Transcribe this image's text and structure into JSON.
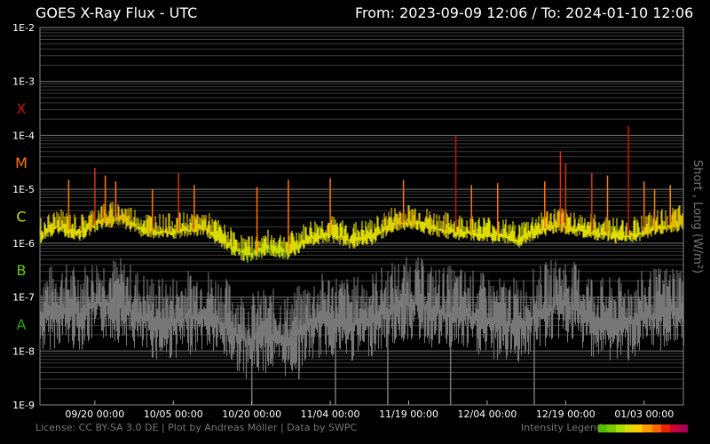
{
  "header": {
    "title": "GOES X-Ray Flux - UTC",
    "range": "From: 2023-09-09 12:06  /  To: 2024-01-10 12:06"
  },
  "footer": {
    "license": "License: CC BY-SA 3.0 DE | Plot by Andreas Möller | Data by SWPC",
    "legend_label": "Intensity Legend",
    "legend_colors": [
      "#55bb00",
      "#77cc00",
      "#aadd00",
      "#dddd00",
      "#ffcc00",
      "#ff9900",
      "#ff6600",
      "#ee2200",
      "#cc0033",
      "#aa0055"
    ]
  },
  "chart_data": {
    "type": "line",
    "title": "GOES X-Ray Flux - UTC",
    "ylabel": "Short , Long (W/m²)",
    "yscale": "log",
    "ylim": [
      1e-09,
      0.01
    ],
    "yticks": [
      "1E-2",
      "1E-3",
      "1E-4",
      "1E-5",
      "1E-6",
      "1E-7",
      "1E-8",
      "1E-9"
    ],
    "flare_classes": [
      {
        "label": "X",
        "value": 0.0001,
        "color": "#cc1100"
      },
      {
        "label": "M",
        "value": 1e-05,
        "color": "#ff7700"
      },
      {
        "label": "C",
        "value": 1e-06,
        "color": "#dddd00"
      },
      {
        "label": "B",
        "value": 1e-07,
        "color": "#66cc00"
      },
      {
        "label": "A",
        "value": 1e-08,
        "color": "#22aa00"
      }
    ],
    "xlim": [
      "2023-09-09 12:06",
      "2024-01-10 12:06"
    ],
    "xticks": [
      {
        "date": "2023-09-20",
        "label": "09/20 00:00"
      },
      {
        "date": "2023-10-05",
        "label": "10/05 00:00"
      },
      {
        "date": "2023-10-20",
        "label": "10/20 00:00"
      },
      {
        "date": "2023-11-04",
        "label": "11/04 00:00"
      },
      {
        "date": "2023-11-19",
        "label": "11/19 00:00"
      },
      {
        "date": "2023-12-04",
        "label": "12/04 00:00"
      },
      {
        "date": "2023-12-19",
        "label": "12/19 00:00"
      },
      {
        "date": "2024-01-03",
        "label": "01/03 00:00"
      }
    ],
    "grid": true,
    "series": [
      {
        "name": "Long",
        "color_scale": "intensity",
        "baseline": [
          [
            "2023-09-09",
            1.3e-06
          ],
          [
            "2023-09-13",
            2e-06
          ],
          [
            "2023-09-17",
            1.5e-06
          ],
          [
            "2023-09-21",
            2.5e-06
          ],
          [
            "2023-09-25",
            2.8e-06
          ],
          [
            "2023-09-29",
            1.8e-06
          ],
          [
            "2023-10-03",
            1.6e-06
          ],
          [
            "2023-10-07",
            1.7e-06
          ],
          [
            "2023-10-11",
            1.9e-06
          ],
          [
            "2023-10-15",
            1e-06
          ],
          [
            "2023-10-19",
            6e-07
          ],
          [
            "2023-10-23",
            8e-07
          ],
          [
            "2023-10-27",
            7e-07
          ],
          [
            "2023-10-31",
            1.2e-06
          ],
          [
            "2023-11-04",
            1.5e-06
          ],
          [
            "2023-11-08",
            1.1e-06
          ],
          [
            "2023-11-12",
            1.3e-06
          ],
          [
            "2023-11-16",
            2.2e-06
          ],
          [
            "2023-11-20",
            2.5e-06
          ],
          [
            "2023-11-24",
            1.8e-06
          ],
          [
            "2023-11-28",
            1.6e-06
          ],
          [
            "2023-12-02",
            1.5e-06
          ],
          [
            "2023-12-06",
            1.4e-06
          ],
          [
            "2023-12-10",
            1.1e-06
          ],
          [
            "2023-12-14",
            1.8e-06
          ],
          [
            "2023-12-18",
            2.2e-06
          ],
          [
            "2023-12-22",
            1.7e-06
          ],
          [
            "2023-12-26",
            1.5e-06
          ],
          [
            "2023-12-30",
            1.3e-06
          ],
          [
            "2024-01-03",
            1.6e-06
          ],
          [
            "2024-01-07",
            2e-06
          ],
          [
            "2024-01-10",
            2.3e-06
          ]
        ],
        "peaks": [
          [
            "2023-09-15",
            1.5e-05
          ],
          [
            "2023-09-20",
            2.5e-05
          ],
          [
            "2023-09-22",
            1.8e-05
          ],
          [
            "2023-09-24",
            1.4e-05
          ],
          [
            "2023-10-01",
            1e-05
          ],
          [
            "2023-10-06",
            2e-05
          ],
          [
            "2023-10-09",
            1.2e-05
          ],
          [
            "2023-10-21",
            1.1e-05
          ],
          [
            "2023-10-27",
            1.5e-05
          ],
          [
            "2023-11-04",
            1.6e-05
          ],
          [
            "2023-11-18",
            1.5e-05
          ],
          [
            "2023-11-28",
            0.0001
          ],
          [
            "2023-12-01",
            1.2e-05
          ],
          [
            "2023-12-06",
            1.3e-05
          ],
          [
            "2023-12-15",
            1.4e-05
          ],
          [
            "2023-12-18",
            5e-05
          ],
          [
            "2023-12-19",
            3e-05
          ],
          [
            "2023-12-24",
            2e-05
          ],
          [
            "2023-12-27",
            1.8e-05
          ],
          [
            "2023-12-31",
            0.00015
          ],
          [
            "2024-01-03",
            1.4e-05
          ],
          [
            "2024-01-05",
            1e-05
          ],
          [
            "2024-01-08",
            1.2e-05
          ]
        ]
      },
      {
        "name": "Short",
        "color": "#777777",
        "baseline": [
          [
            "2023-09-09",
            4e-08
          ],
          [
            "2023-09-13",
            6e-08
          ],
          [
            "2023-09-17",
            5e-08
          ],
          [
            "2023-09-21",
            8e-08
          ],
          [
            "2023-09-25",
            7e-08
          ],
          [
            "2023-09-29",
            4e-08
          ],
          [
            "2023-10-03",
            3e-08
          ],
          [
            "2023-10-07",
            4e-08
          ],
          [
            "2023-10-11",
            5e-08
          ],
          [
            "2023-10-15",
            3e-08
          ],
          [
            "2023-10-19",
            1.5e-08
          ],
          [
            "2023-10-23",
            2e-08
          ],
          [
            "2023-10-27",
            1.5e-08
          ],
          [
            "2023-10-31",
            3e-08
          ],
          [
            "2023-11-04",
            4e-08
          ],
          [
            "2023-11-08",
            3e-08
          ],
          [
            "2023-11-12",
            4e-08
          ],
          [
            "2023-11-16",
            6e-08
          ],
          [
            "2023-11-20",
            8e-08
          ],
          [
            "2023-11-24",
            5e-08
          ],
          [
            "2023-11-28",
            5e-08
          ],
          [
            "2023-12-02",
            4e-08
          ],
          [
            "2023-12-06",
            3e-08
          ],
          [
            "2023-12-10",
            3e-08
          ],
          [
            "2023-12-14",
            5e-08
          ],
          [
            "2023-12-18",
            8e-08
          ],
          [
            "2023-12-22",
            5e-08
          ],
          [
            "2023-12-26",
            3e-08
          ],
          [
            "2023-12-30",
            3e-08
          ],
          [
            "2024-01-03",
            4e-08
          ],
          [
            "2024-01-07",
            5e-08
          ],
          [
            "2024-01-10",
            6e-08
          ]
        ],
        "dips": [
          [
            "2023-10-01",
            1e-08
          ],
          [
            "2023-10-20",
            1e-09
          ],
          [
            "2023-10-29",
            3e-09
          ],
          [
            "2023-11-05",
            1e-09
          ],
          [
            "2023-11-15",
            1e-09
          ],
          [
            "2023-11-27",
            1e-09
          ],
          [
            "2023-12-13",
            1e-09
          ]
        ]
      }
    ]
  }
}
